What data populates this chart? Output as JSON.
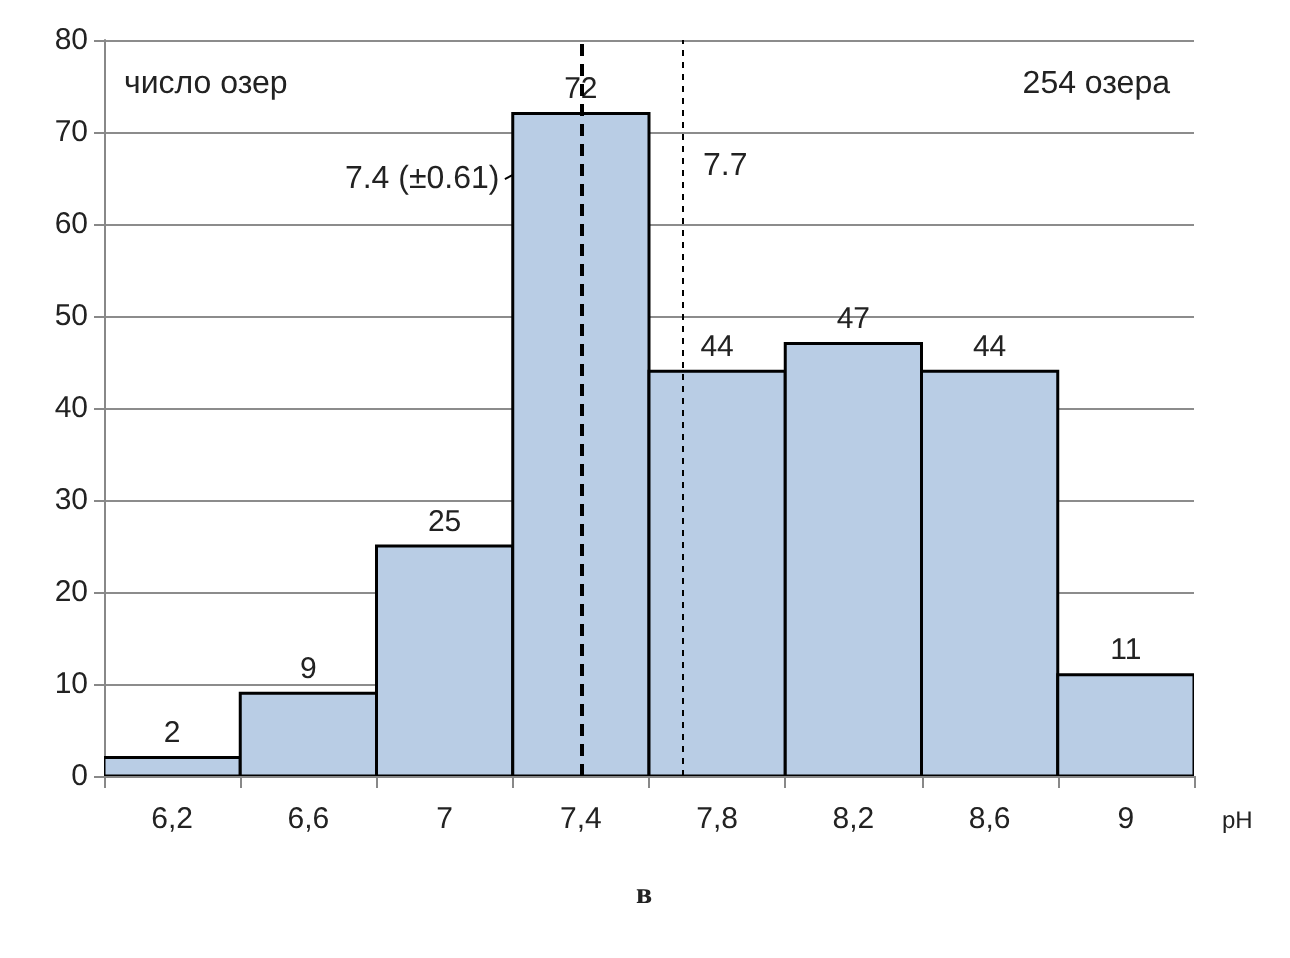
{
  "chart_data": {
    "type": "histogram",
    "xlabel": "pH",
    "ylabel": "число озер",
    "bins": [
      6.0,
      6.4,
      6.8,
      7.2,
      7.6,
      8.0,
      8.4,
      8.8,
      9.2
    ],
    "values": [
      2,
      9,
      25,
      72,
      44,
      47,
      44,
      11
    ],
    "color": "#b9cde5",
    "data_labels": true,
    "xlim": [
      6.0,
      9.2
    ],
    "xticks": [
      {
        "value": 6.0,
        "label": null
      },
      {
        "value": 6.2,
        "label": "6,2"
      },
      {
        "value": 6.4,
        "label": null
      },
      {
        "value": 6.6,
        "label": "6,6"
      },
      {
        "value": 6.8,
        "label": null
      },
      {
        "value": 7.0,
        "label": "7"
      },
      {
        "value": 7.2,
        "label": null
      },
      {
        "value": 7.4,
        "label": "7,4"
      },
      {
        "value": 7.6,
        "label": null
      },
      {
        "value": 7.8,
        "label": "7,8"
      },
      {
        "value": 8.0,
        "label": null
      },
      {
        "value": 8.2,
        "label": "8,2"
      },
      {
        "value": 8.4,
        "label": null
      },
      {
        "value": 8.6,
        "label": "8,6"
      },
      {
        "value": 8.8,
        "label": null
      },
      {
        "value": 9.0,
        "label": "9"
      },
      {
        "value": 9.2,
        "label": null
      }
    ],
    "ylim": [
      0,
      80
    ],
    "yticks": [
      0,
      10,
      20,
      30,
      40,
      50,
      60,
      70,
      80
    ],
    "grid": "y",
    "ref_lines": [
      {
        "axis": "x",
        "value": 7.4,
        "label": "7.4 (±0.61)",
        "line_style": "dashed"
      },
      {
        "axis": "x",
        "value": 7.7,
        "label": "7.7",
        "line_style": "dotted"
      }
    ],
    "annotations": [
      "254 озера",
      "в"
    ]
  }
}
